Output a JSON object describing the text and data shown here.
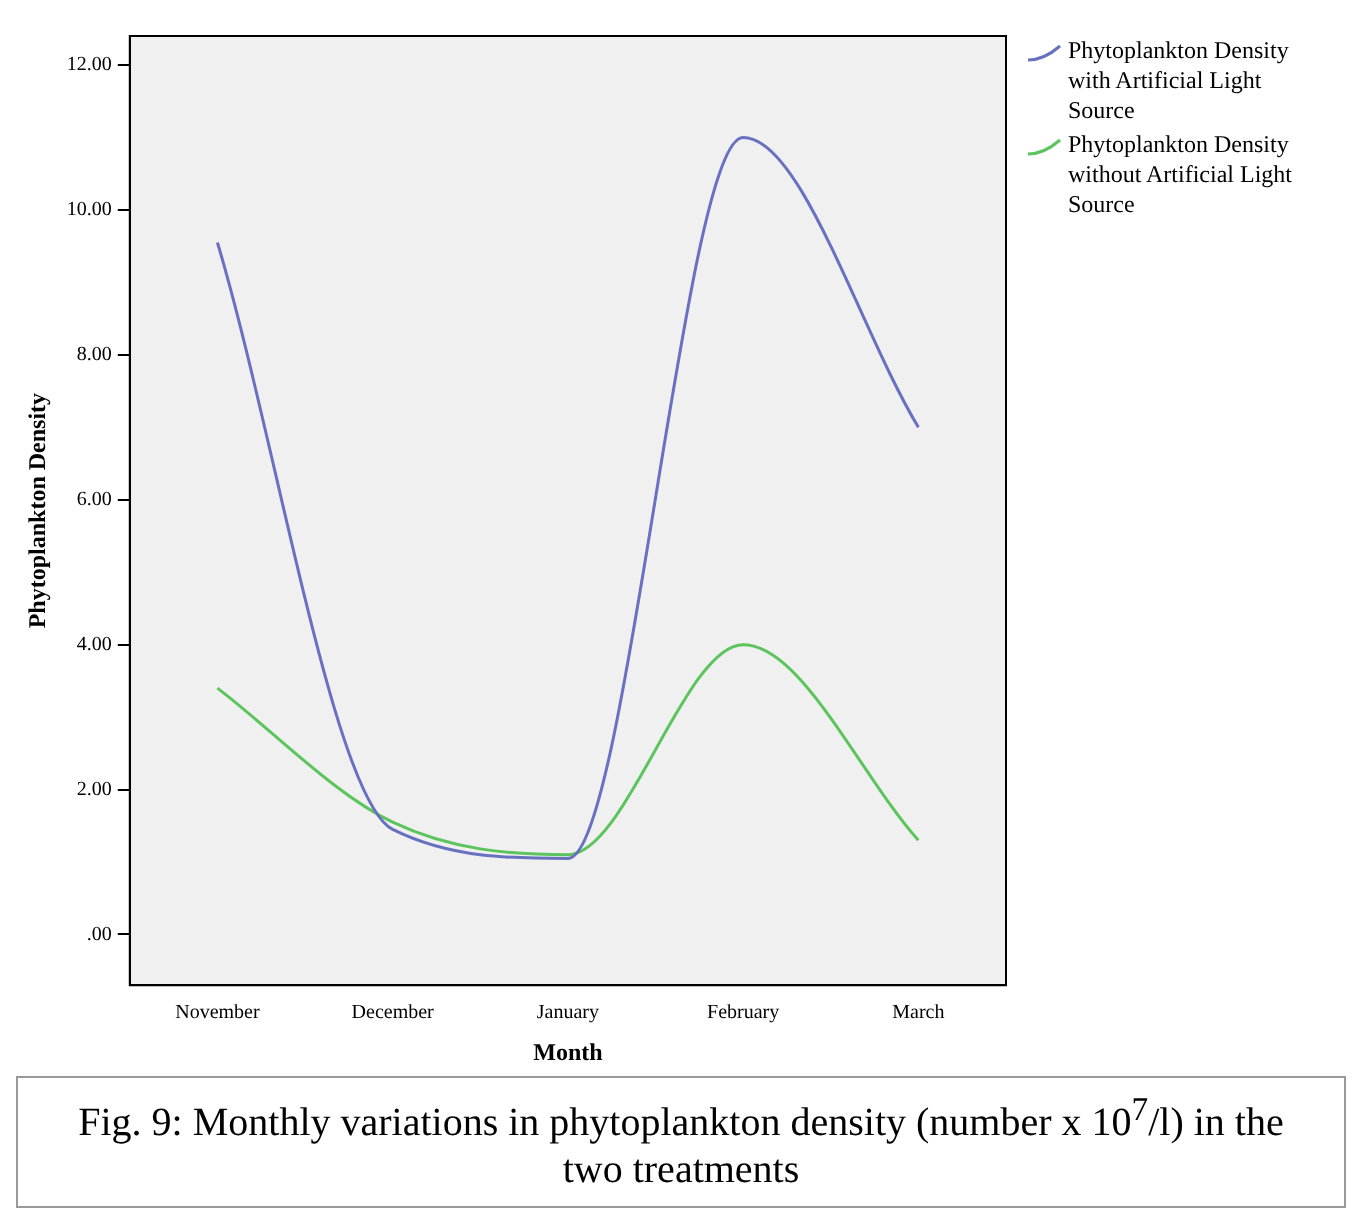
{
  "chart_data": {
    "type": "line",
    "xlabel": "Month",
    "ylabel": "Phytoplankton Density",
    "categories": [
      "November",
      "December",
      "January",
      "February",
      "March"
    ],
    "series": [
      {
        "name": "Phytoplankton Density with Artificial Light Source",
        "color": "#6870c0",
        "values": [
          9.55,
          1.45,
          1.05,
          11.0,
          7.0
        ]
      },
      {
        "name": "Phytoplankton Density without Artificial Light Source",
        "color": "#5cc45c",
        "values": [
          3.4,
          1.55,
          1.1,
          4.0,
          1.3
        ]
      }
    ],
    "ylim": [
      -0.7,
      12.4
    ],
    "yticks": [
      {
        "value": 0,
        "label": ".00"
      },
      {
        "value": 2,
        "label": "2.00"
      },
      {
        "value": 4,
        "label": "4.00"
      },
      {
        "value": 6,
        "label": "6.00"
      },
      {
        "value": 8,
        "label": "8.00"
      },
      {
        "value": 10,
        "label": "10.00"
      },
      {
        "value": 12,
        "label": "12.00"
      }
    ],
    "grid": false,
    "legend": "top right",
    "marker": "none",
    "line_style": "solid",
    "annotations": [
      "Fig. 9: Monthly variations in phytoplankton density (number x 10$^{7}$/l) in the two treatments"
    ]
  }
}
